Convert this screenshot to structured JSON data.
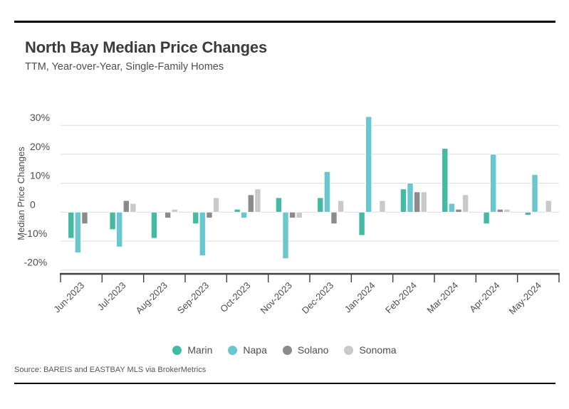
{
  "header": {
    "title": "North Bay Median Price Changes",
    "subtitle": "TTM, Year-over-Year, Single-Family Homes"
  },
  "chart_data": {
    "type": "bar",
    "title": "North Bay Median Price Changes",
    "subtitle": "TTM, Year-over-Year, Single-Family Homes",
    "ylabel": "Median Price Changes",
    "xlabel": "",
    "ylim": [
      -25,
      35
    ],
    "grid": true,
    "legend_position": "bottom",
    "value_unit": "percent",
    "categories": [
      "Jun-2023",
      "Jul-2023",
      "Aug-2023",
      "Sep-2023",
      "Oct-2023",
      "Nov-2023",
      "Dec-2023",
      "Jan-2024",
      "Feb-2024",
      "Mar-2024",
      "Apr-2024",
      "May-2024"
    ],
    "yticks": [
      {
        "value": 30,
        "label": "30%"
      },
      {
        "value": 20,
        "label": "20%"
      },
      {
        "value": 10,
        "label": "10%"
      },
      {
        "value": 0,
        "label": "0"
      },
      {
        "value": -10,
        "label": "-10%"
      },
      {
        "value": -20,
        "label": "-20%"
      }
    ],
    "series": [
      {
        "name": "Marin",
        "color": "#44baa2",
        "values": [
          -9,
          -6,
          -9,
          -4,
          1,
          5,
          5,
          -8,
          8,
          22,
          -4,
          -1
        ]
      },
      {
        "name": "Napa",
        "color": "#6ac6cf",
        "values": [
          -14,
          -12,
          0,
          -15,
          -2,
          -16,
          14,
          33,
          10,
          3,
          20,
          13
        ]
      },
      {
        "name": "Solano",
        "color": "#8b8b8b",
        "values": [
          -4,
          4,
          -2,
          -2,
          6,
          -2,
          -4,
          0,
          7,
          1,
          1,
          0
        ]
      },
      {
        "name": "Sonoma",
        "color": "#c9c9c9",
        "values": [
          0,
          3,
          1,
          5,
          8,
          -2,
          4,
          4,
          7,
          6,
          1,
          4
        ]
      }
    ]
  },
  "footer": {
    "source": "Source:  BAREIS and EASTBAY MLS via BrokerMetrics"
  }
}
